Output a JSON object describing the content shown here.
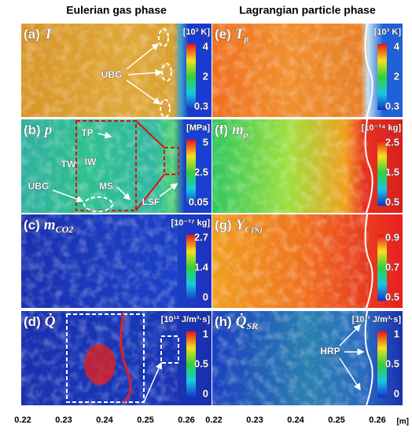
{
  "columns": [
    {
      "title": "Eulerian gas phase",
      "panels": [
        {
          "label": "(a)",
          "symbol": "T",
          "unit": "[10³ K]",
          "colorbar_ticks": [
            "4",
            "2",
            "0.3"
          ],
          "annotations": [
            "UBG"
          ]
        },
        {
          "label": "(b)",
          "symbol": "p",
          "unit": "[MPa]",
          "colorbar_ticks": [
            "5",
            "2.5",
            "0.05"
          ],
          "annotations": [
            "TP",
            "TW",
            "IW",
            "MS",
            "UBG",
            "LSF"
          ]
        },
        {
          "label": "(c)",
          "symbol": "m",
          "sub": "CO2",
          "unit": "[10⁻¹⁷ kg]",
          "colorbar_ticks": [
            "2.7",
            "1.4",
            "0"
          ]
        },
        {
          "label": "(d)",
          "symbol": "Q̇",
          "unit": "[10¹² J/m³·s]",
          "colorbar_ticks": [
            "1",
            "0.5",
            "0"
          ]
        }
      ],
      "x_ticks": [
        "0.22",
        "0.23",
        "0.24",
        "0.25",
        "0.26"
      ]
    },
    {
      "title": "Lagrangian particle phase",
      "panels": [
        {
          "label": "(e)",
          "symbol": "T",
          "sub": "p",
          "unit": "[10³ K]",
          "colorbar_ticks": [
            "4",
            "2",
            "0.3"
          ]
        },
        {
          "label": "(f)",
          "symbol": "m",
          "sub": "p",
          "unit": "[10⁻¹⁴ kg]",
          "colorbar_ticks": [
            "2.5",
            "1.5",
            "0.5"
          ]
        },
        {
          "label": "(g)",
          "symbol": "Y",
          "sub": "C(S)",
          "colorbar_ticks": [
            "0.9",
            "0.7",
            "0.5"
          ]
        },
        {
          "label": "(h)",
          "symbol": "Q̇",
          "sub": "SR",
          "unit": "[10¹¹ J/m³·s]",
          "colorbar_ticks": [
            "1",
            "0.5",
            "0"
          ],
          "annotations": [
            "HRP"
          ]
        }
      ],
      "x_ticks": [
        "0.22",
        "0.23",
        "0.24",
        "0.25",
        "0.26"
      ]
    }
  ],
  "x_unit": "[m]"
}
